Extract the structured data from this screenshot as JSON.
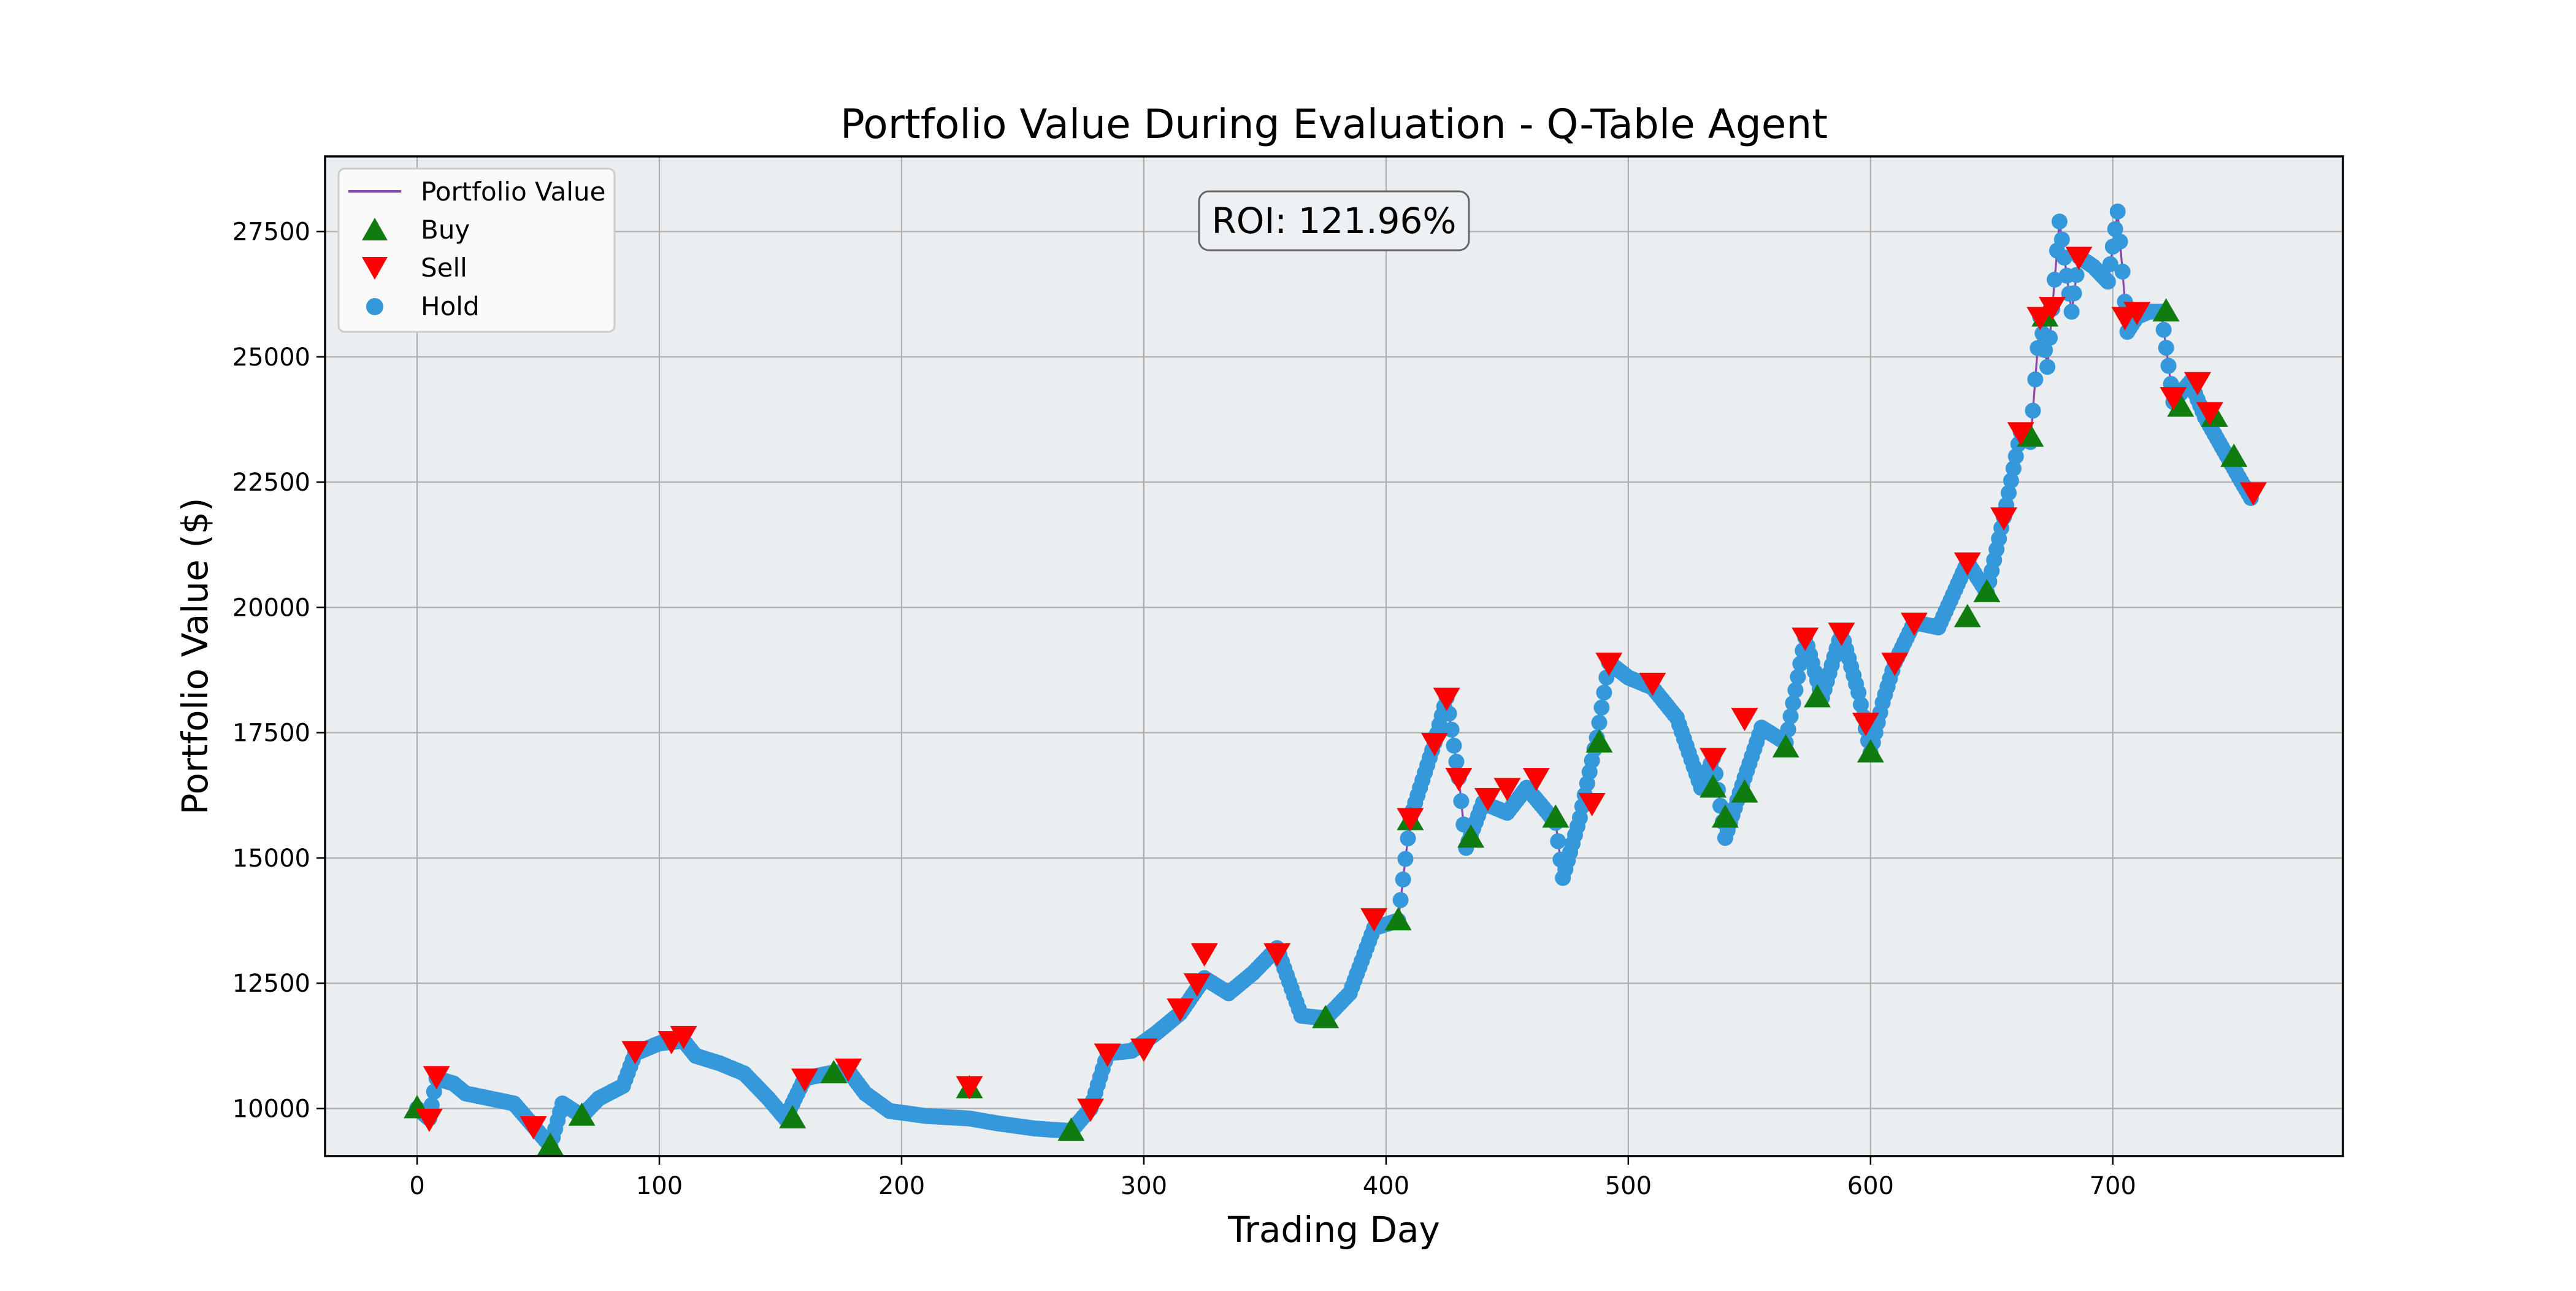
{
  "chart_data": {
    "type": "line",
    "title": "Portfolio Value During Evaluation - Q-Table Agent",
    "xlabel": "Trading Day",
    "ylabel": "Portfolio Value ($)",
    "xlim": [
      -38,
      795
    ],
    "ylim": [
      9050,
      29000
    ],
    "x_ticks": [
      0,
      100,
      200,
      300,
      400,
      500,
      600,
      700
    ],
    "y_ticks": [
      10000,
      12500,
      15000,
      17500,
      20000,
      22500,
      25000,
      27500
    ],
    "grid": true,
    "background_color": "#eaeef0",
    "annotation": "ROI: 121.96%",
    "legend": {
      "position": "top-left",
      "entries": [
        {
          "label": "Portfolio Value",
          "marker": "line",
          "color": "#8e44ad"
        },
        {
          "label": "Buy",
          "marker": "triangle-up",
          "color": "#107c10"
        },
        {
          "label": "Sell",
          "marker": "triangle-down",
          "color": "#ff0000"
        },
        {
          "label": "Hold",
          "marker": "circle",
          "color": "#3498db"
        }
      ]
    },
    "series": [
      {
        "name": "Portfolio Value",
        "color": "#8e44ad",
        "points": [
          [
            0,
            10000
          ],
          [
            5,
            9800
          ],
          [
            8,
            10600
          ],
          [
            15,
            10500
          ],
          [
            20,
            10300
          ],
          [
            30,
            10200
          ],
          [
            40,
            10100
          ],
          [
            48,
            9650
          ],
          [
            55,
            9250
          ],
          [
            60,
            10100
          ],
          [
            68,
            9850
          ],
          [
            75,
            10200
          ],
          [
            85,
            10450
          ],
          [
            90,
            11100
          ],
          [
            100,
            11300
          ],
          [
            110,
            11350
          ],
          [
            115,
            11050
          ],
          [
            125,
            10900
          ],
          [
            135,
            10700
          ],
          [
            145,
            10200
          ],
          [
            152,
            9800
          ],
          [
            160,
            10600
          ],
          [
            170,
            10700
          ],
          [
            178,
            10750
          ],
          [
            185,
            10300
          ],
          [
            195,
            9950
          ],
          [
            210,
            9850
          ],
          [
            228,
            9800
          ],
          [
            240,
            9700
          ],
          [
            255,
            9600
          ],
          [
            270,
            9550
          ],
          [
            278,
            10000
          ],
          [
            285,
            11100
          ],
          [
            295,
            11150
          ],
          [
            305,
            11500
          ],
          [
            315,
            11900
          ],
          [
            325,
            12600
          ],
          [
            335,
            12300
          ],
          [
            345,
            12700
          ],
          [
            355,
            13200
          ],
          [
            365,
            11850
          ],
          [
            375,
            11800
          ],
          [
            385,
            12300
          ],
          [
            395,
            13600
          ],
          [
            405,
            13750
          ],
          [
            410,
            15800
          ],
          [
            420,
            17300
          ],
          [
            425,
            18200
          ],
          [
            430,
            16600
          ],
          [
            433,
            15200
          ],
          [
            440,
            16100
          ],
          [
            450,
            15900
          ],
          [
            458,
            16400
          ],
          [
            465,
            16000
          ],
          [
            470,
            15700
          ],
          [
            473,
            14600
          ],
          [
            480,
            15800
          ],
          [
            487,
            17400
          ],
          [
            492,
            18900
          ],
          [
            500,
            18600
          ],
          [
            510,
            18400
          ],
          [
            520,
            17800
          ],
          [
            530,
            16400
          ],
          [
            535,
            17000
          ],
          [
            540,
            15400
          ],
          [
            548,
            16600
          ],
          [
            555,
            17600
          ],
          [
            565,
            17300
          ],
          [
            573,
            19400
          ],
          [
            580,
            18200
          ],
          [
            588,
            19500
          ],
          [
            595,
            18300
          ],
          [
            600,
            17100
          ],
          [
            605,
            18100
          ],
          [
            610,
            18900
          ],
          [
            618,
            19700
          ],
          [
            628,
            19600
          ],
          [
            640,
            20900
          ],
          [
            648,
            20300
          ],
          [
            655,
            21800
          ],
          [
            662,
            23500
          ],
          [
            666,
            23300
          ],
          [
            670,
            25800
          ],
          [
            673,
            24800
          ],
          [
            678,
            27700
          ],
          [
            683,
            25900
          ],
          [
            686,
            27000
          ],
          [
            692,
            26800
          ],
          [
            698,
            26500
          ],
          [
            702,
            27900
          ],
          [
            706,
            25500
          ],
          [
            710,
            25800
          ],
          [
            715,
            25900
          ],
          [
            720,
            25900
          ],
          [
            725,
            24100
          ],
          [
            732,
            24500
          ],
          [
            738,
            23800
          ],
          [
            745,
            23200
          ],
          [
            752,
            22600
          ],
          [
            758,
            22100
          ]
        ]
      }
    ],
    "buy_points": [
      [
        0,
        10000
      ],
      [
        55,
        9250
      ],
      [
        68,
        9850
      ],
      [
        155,
        9800
      ],
      [
        172,
        10700
      ],
      [
        228,
        10400
      ],
      [
        270,
        9550
      ],
      [
        375,
        11800
      ],
      [
        405,
        13750
      ],
      [
        410,
        15750
      ],
      [
        435,
        15400
      ],
      [
        470,
        15800
      ],
      [
        488,
        17300
      ],
      [
        535,
        16400
      ],
      [
        540,
        15800
      ],
      [
        548,
        16300
      ],
      [
        565,
        17200
      ],
      [
        578,
        18200
      ],
      [
        600,
        17100
      ],
      [
        640,
        19800
      ],
      [
        648,
        20300
      ],
      [
        666,
        23400
      ],
      [
        672,
        25800
      ],
      [
        722,
        25900
      ],
      [
        728,
        24000
      ],
      [
        742,
        23800
      ],
      [
        750,
        23000
      ]
    ],
    "sell_points": [
      [
        5,
        9800
      ],
      [
        8,
        10650
      ],
      [
        48,
        9650
      ],
      [
        90,
        11150
      ],
      [
        105,
        11350
      ],
      [
        110,
        11450
      ],
      [
        160,
        10600
      ],
      [
        178,
        10800
      ],
      [
        228,
        10450
      ],
      [
        278,
        10000
      ],
      [
        285,
        11100
      ],
      [
        300,
        11200
      ],
      [
        315,
        12000
      ],
      [
        322,
        12500
      ],
      [
        325,
        13100
      ],
      [
        355,
        13100
      ],
      [
        395,
        13800
      ],
      [
        410,
        15800
      ],
      [
        420,
        17300
      ],
      [
        425,
        18200
      ],
      [
        430,
        16600
      ],
      [
        442,
        16200
      ],
      [
        450,
        16400
      ],
      [
        462,
        16600
      ],
      [
        485,
        16100
      ],
      [
        492,
        18900
      ],
      [
        510,
        18500
      ],
      [
        535,
        17000
      ],
      [
        548,
        17800
      ],
      [
        573,
        19400
      ],
      [
        588,
        19500
      ],
      [
        598,
        17700
      ],
      [
        610,
        18900
      ],
      [
        618,
        19700
      ],
      [
        640,
        20900
      ],
      [
        655,
        21800
      ],
      [
        662,
        23500
      ],
      [
        670,
        25800
      ],
      [
        675,
        26000
      ],
      [
        686,
        27000
      ],
      [
        705,
        25800
      ],
      [
        710,
        25900
      ],
      [
        725,
        24200
      ],
      [
        735,
        24500
      ],
      [
        740,
        23900
      ],
      [
        758,
        22300
      ]
    ]
  }
}
